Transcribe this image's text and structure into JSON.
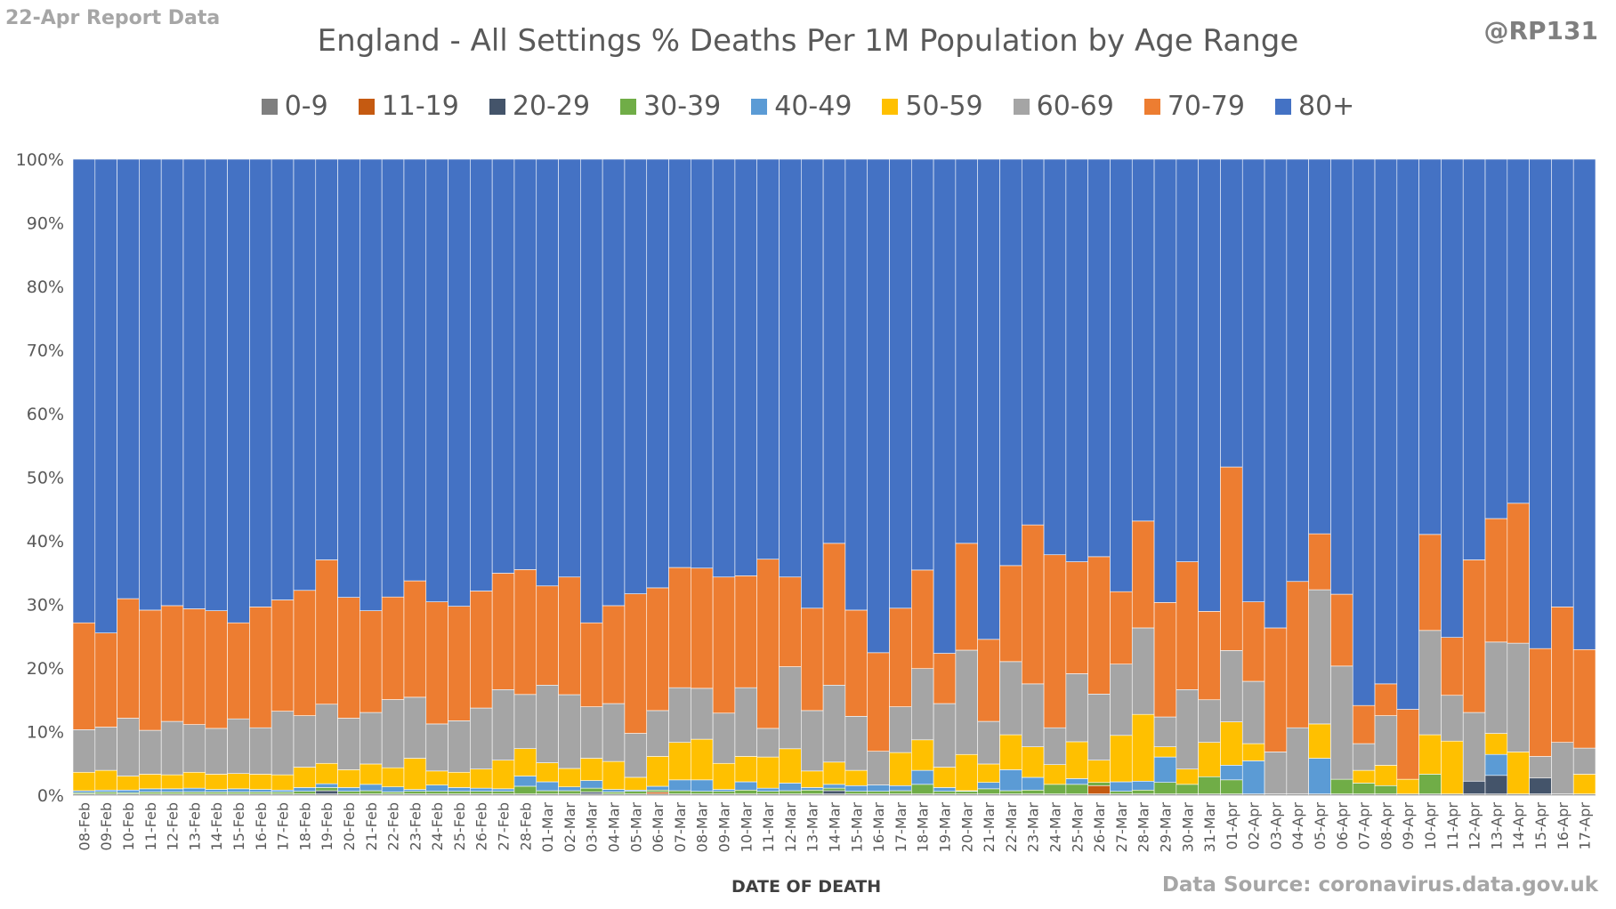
{
  "corner_left": "22-Apr Report Data",
  "corner_right": "@RP131",
  "source_text": "Data Source: coronavirus.data.gov.uk",
  "chart_data": {
    "type": "bar",
    "stacked": "percent",
    "title": "England - All Settings % Deaths Per 1M Population by Age Range",
    "xlabel": "DATE OF DEATH",
    "ylabel": "",
    "ylim": [
      0,
      100
    ],
    "yticks": [
      "0%",
      "10%",
      "20%",
      "30%",
      "40%",
      "50%",
      "60%",
      "70%",
      "80%",
      "90%",
      "100%"
    ],
    "legend_position": "top",
    "categories": [
      "08-Feb",
      "09-Feb",
      "10-Feb",
      "11-Feb",
      "12-Feb",
      "13-Feb",
      "14-Feb",
      "15-Feb",
      "16-Feb",
      "17-Feb",
      "18-Feb",
      "19-Feb",
      "20-Feb",
      "21-Feb",
      "22-Feb",
      "23-Feb",
      "24-Feb",
      "25-Feb",
      "26-Feb",
      "27-Feb",
      "28-Feb",
      "01-Mar",
      "02-Mar",
      "03-Mar",
      "04-Mar",
      "05-Mar",
      "06-Mar",
      "07-Mar",
      "08-Mar",
      "09-Mar",
      "10-Mar",
      "11-Mar",
      "12-Mar",
      "13-Mar",
      "14-Mar",
      "15-Mar",
      "16-Mar",
      "17-Mar",
      "18-Mar",
      "19-Mar",
      "20-Mar",
      "21-Mar",
      "22-Mar",
      "23-Mar",
      "24-Mar",
      "25-Mar",
      "26-Mar",
      "27-Mar",
      "28-Mar",
      "29-Mar",
      "30-Mar",
      "31-Mar",
      "01-Apr",
      "02-Apr",
      "03-Apr",
      "04-Apr",
      "05-Apr",
      "06-Apr",
      "07-Apr",
      "08-Apr",
      "09-Apr",
      "10-Apr",
      "11-Apr",
      "12-Apr",
      "13-Apr",
      "14-Apr",
      "15-Apr",
      "16-Apr",
      "17-Apr"
    ],
    "series": [
      {
        "name": "0-9",
        "color": "#7f7f7f",
        "values": [
          0.2,
          0.2,
          0.2,
          0.2,
          0.2,
          0.2,
          0.2,
          0.2,
          0.2,
          0.2,
          0.2,
          0.2,
          0.2,
          0.2,
          0.2,
          0.2,
          0.2,
          0.2,
          0.2,
          0.2,
          0.2,
          0.2,
          0.2,
          0.2,
          0.2,
          0.2,
          0.2,
          0.2,
          0.2,
          0.2,
          0.2,
          0.2,
          0.2,
          0.2,
          0.2,
          0.2,
          0.2,
          0.2,
          0.2,
          0.2,
          0.2,
          0.2,
          0.2,
          0.2,
          0.2,
          0.2,
          0.2,
          0.2,
          0.2,
          0.2,
          0.2,
          0.2,
          0.2,
          0.2,
          0.2,
          0.2,
          0.2,
          0.2,
          0.2,
          0.2,
          0.2,
          0.2,
          0.2,
          0.2,
          0.2,
          0.2,
          0.2,
          0.2,
          0.2
        ]
      },
      {
        "name": "11-19",
        "color": "#c55a11",
        "values": [
          0,
          0,
          0,
          0,
          0,
          0,
          0,
          0,
          0,
          0,
          0,
          0,
          0,
          0,
          0,
          0,
          0,
          0,
          0,
          0,
          0,
          0,
          0,
          0,
          0,
          0,
          0.3,
          0,
          0,
          0,
          0,
          0,
          0,
          0,
          0,
          0,
          0,
          0,
          0,
          0,
          0,
          0,
          0,
          0,
          0,
          0,
          1.3,
          0,
          0,
          0,
          0,
          0,
          0,
          0,
          0,
          0,
          0,
          0,
          0,
          0,
          0,
          0,
          0,
          0,
          0,
          0,
          0,
          0,
          0
        ]
      },
      {
        "name": "20-29",
        "color": "#44546a",
        "values": [
          0,
          0,
          0,
          0,
          0,
          0,
          0,
          0,
          0,
          0,
          0,
          0.5,
          0,
          0,
          0,
          0,
          0,
          0,
          0,
          0,
          0,
          0,
          0,
          0.3,
          0,
          0,
          0,
          0,
          0,
          0,
          0,
          0,
          0,
          0,
          0.5,
          0,
          0,
          0,
          0,
          0,
          0,
          0,
          0,
          0,
          0,
          0,
          0,
          0,
          0,
          0,
          0,
          0,
          0,
          0,
          0,
          0,
          0,
          0,
          0,
          0,
          0,
          0,
          0,
          2.0,
          3.0,
          0,
          2.5,
          0,
          0
        ]
      },
      {
        "name": "30-39",
        "color": "#70ad47",
        "values": [
          0.2,
          0.3,
          0.2,
          0.3,
          0.3,
          0.3,
          0.3,
          0.3,
          0.3,
          0.3,
          0.4,
          0.5,
          0.4,
          0.5,
          0.3,
          0.4,
          0.4,
          0.4,
          0.4,
          0.4,
          1.2,
          0.5,
          0.5,
          0.6,
          0.3,
          0.4,
          0.3,
          0.5,
          0.4,
          0.4,
          0.6,
          0.4,
          0.5,
          0.6,
          0.4,
          0.4,
          0.4,
          0.5,
          1.5,
          0.4,
          0.4,
          0.8,
          0.5,
          0.6,
          1.5,
          1.5,
          0.5,
          0.4,
          0.6,
          1.8,
          1.5,
          2.7,
          2.2,
          0,
          0,
          0,
          0,
          2.3,
          1.7,
          1.3,
          0,
          3.1,
          0,
          0,
          0,
          0,
          0,
          0,
          0
        ]
      },
      {
        "name": "40-49",
        "color": "#5b9bd5",
        "values": [
          0.3,
          0.3,
          0.4,
          0.5,
          0.5,
          0.6,
          0.4,
          0.5,
          0.4,
          0.3,
          0.6,
          0.6,
          0.6,
          1.0,
          0.8,
          0.3,
          1.0,
          0.6,
          0.5,
          0.4,
          1.6,
          1.4,
          0.6,
          1.2,
          0.4,
          0.2,
          0.6,
          1.7,
          1.8,
          0.3,
          1.3,
          0.5,
          1.2,
          0.4,
          0.6,
          0.9,
          1.0,
          0.8,
          2.2,
          0.6,
          0.1,
          1.0,
          3.3,
          2.0,
          0,
          0.9,
          0,
          1.5,
          1.4,
          4.0,
          0,
          0,
          2.3,
          5.2,
          0,
          0,
          5.6,
          0,
          0,
          0,
          0,
          0,
          0,
          0,
          3.4,
          0,
          0,
          0,
          0
        ]
      },
      {
        "name": "50-59",
        "color": "#ffc000",
        "values": [
          2.9,
          3.1,
          2.2,
          2.3,
          2.2,
          2.5,
          2.4,
          2.4,
          2.4,
          2.4,
          3.2,
          3.2,
          2.8,
          3.2,
          3.0,
          4.9,
          2.2,
          2.4,
          3.0,
          4.5,
          4.3,
          3.0,
          2.9,
          3.5,
          4.4,
          2.0,
          4.7,
          5.9,
          6.4,
          4.1,
          4.0,
          4.9,
          5.4,
          2.6,
          3.5,
          2.4,
          0,
          5.2,
          4.8,
          3.2,
          5.7,
          2.9,
          5.5,
          4.8,
          3.1,
          5.8,
          3.5,
          7.3,
          10.5,
          1.6,
          2.4,
          5.4,
          6.8,
          2.7,
          0,
          0,
          5.4,
          0,
          2.0,
          3.2,
          2.3,
          6.2,
          8.3,
          0,
          3.4,
          6.6,
          0,
          0,
          3.1
        ]
      },
      {
        "name": "60-69",
        "color": "#a5a5a5",
        "values": [
          6.7,
          6.8,
          9.1,
          6.9,
          8.4,
          7.5,
          7.2,
          8.6,
          7.3,
          10.0,
          8.1,
          9.3,
          8.1,
          8.1,
          10.7,
          9.6,
          7.4,
          8.1,
          9.6,
          11.1,
          8.5,
          12.2,
          11.6,
          8.1,
          9.1,
          6.9,
          7.2,
          8.6,
          8.0,
          7.9,
          10.8,
          4.5,
          12.9,
          9.5,
          12.1,
          8.5,
          5.3,
          7.2,
          11.2,
          10.0,
          16.4,
          6.7,
          11.5,
          9.9,
          5.8,
          10.7,
          10.4,
          11.2,
          13.6,
          4.7,
          12.5,
          6.7,
          11.2,
          9.8,
          6.6,
          10.4,
          21.1,
          17.8,
          4.2,
          7.8,
          0,
          16.4,
          7.2,
          10.8,
          14.8,
          17.1,
          3.4,
          8.1,
          4.1
        ]
      },
      {
        "name": "70-79",
        "color": "#ed7d31",
        "values": [
          16.8,
          14.8,
          18.8,
          18.9,
          18.2,
          18.2,
          18.5,
          15.1,
          19.0,
          17.5,
          19.7,
          22.7,
          19.0,
          16.0,
          16.1,
          18.3,
          19.2,
          18.0,
          18.4,
          18.3,
          19.6,
          15.6,
          18.5,
          13.2,
          15.4,
          21.9,
          19.3,
          18.9,
          18.9,
          21.4,
          17.6,
          26.6,
          14.1,
          16.1,
          22.3,
          16.7,
          15.5,
          15.5,
          15.5,
          7.9,
          16.8,
          12.9,
          15.1,
          25.0,
          27.2,
          17.6,
          21.6,
          11.4,
          16.8,
          18.0,
          20.1,
          13.9,
          28.8,
          12.5,
          19.5,
          23.0,
          8.8,
          11.3,
          6.0,
          5.0,
          11.0,
          15.1,
          9.1,
          24.0,
          20.0,
          22.0,
          17.0,
          21.3,
          15.5
        ]
      },
      {
        "name": "80+",
        "color": "#4472c4",
        "values": [
          72.9,
          74.5,
          69.1,
          70.9,
          70.2,
          70.7,
          71.0,
          72.9,
          70.4,
          69.3,
          67.8,
          63.0,
          68.9,
          71.0,
          68.7,
          66.3,
          69.6,
          70.3,
          67.9,
          65.1,
          64.4,
          67.1,
          65.7,
          72.9,
          70.2,
          68.2,
          67.4,
          64.2,
          64.3,
          65.7,
          65.5,
          62.9,
          65.7,
          70.6,
          60.4,
          70.9,
          77.6,
          70.6,
          64.6,
          77.7,
          60.4,
          75.5,
          63.9,
          57.5,
          62.2,
          63.3,
          62.5,
          68.0,
          56.9,
          69.7,
          63.3,
          71.1,
          48.3,
          69.6,
          73.7,
          66.4,
          58.9,
          68.4,
          85.9,
          82.5,
          86.5,
          59.0,
          75.2,
          63.0,
          58.2,
          54.1,
          77.1,
          70.4,
          77.1
        ]
      }
    ]
  }
}
